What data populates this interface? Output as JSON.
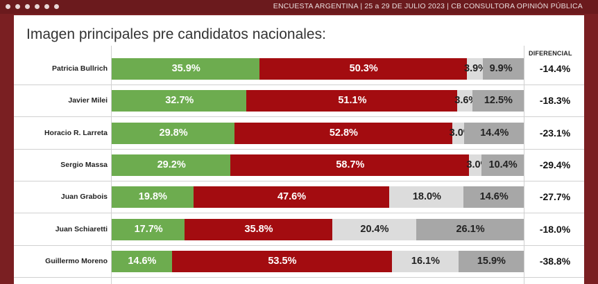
{
  "header": {
    "source": "ENCUESTA ARGENTINA | 25 a 29 DE JULIO 2023 | CB CONSULTORA OPINIÓN PÚBLICA"
  },
  "chart_data": {
    "type": "bar",
    "stacked": true,
    "orientation": "horizontal",
    "title": "Imagen principales pre candidatos nacionales:",
    "diff_header": "DIFERENCIAL",
    "xlim": [
      0,
      100
    ],
    "categories": [
      "Patricia Bullrich",
      "Javier Milei",
      "Horacio R. Larreta",
      "Sergio Massa",
      "Juan Grabois",
      "Juan Schiaretti",
      "Guillermo Moreno"
    ],
    "colors": [
      "#6dac4f",
      "#a30c10",
      "#dcdcdc",
      "#a7a7a7"
    ],
    "series": [
      {
        "values": [
          35.9,
          32.7,
          29.8,
          29.2,
          19.8,
          17.7,
          14.6
        ],
        "labels": [
          "35.9%",
          "32.7%",
          "29.8%",
          "29.2%",
          "19.8%",
          "17.7%",
          "14.6%"
        ]
      },
      {
        "values": [
          50.3,
          51.1,
          52.8,
          58.7,
          47.6,
          35.8,
          53.5
        ],
        "labels": [
          "50.3%",
          "51.1%",
          "52.8%",
          "58.7%",
          "47.6%",
          "35.8%",
          "53.5%"
        ]
      },
      {
        "values": [
          3.9,
          3.6,
          3.0,
          3.0,
          18.0,
          20.4,
          16.1
        ],
        "labels": [
          "3.9%",
          "3.6%",
          "3.0%",
          "3.0%",
          "18.0%",
          "20.4%",
          "16.1%"
        ]
      },
      {
        "values": [
          9.9,
          12.5,
          14.4,
          10.4,
          14.6,
          26.1,
          15.9
        ],
        "labels": [
          "9.9%",
          "12.5%",
          "14.4%",
          "10.4%",
          "14.6%",
          "26.1%",
          "15.9%"
        ]
      }
    ],
    "differential": [
      "-14.4%",
      "-18.3%",
      "-23.1%",
      "-29.4%",
      "-27.7%",
      "-18.0%",
      "-38.8%"
    ]
  }
}
